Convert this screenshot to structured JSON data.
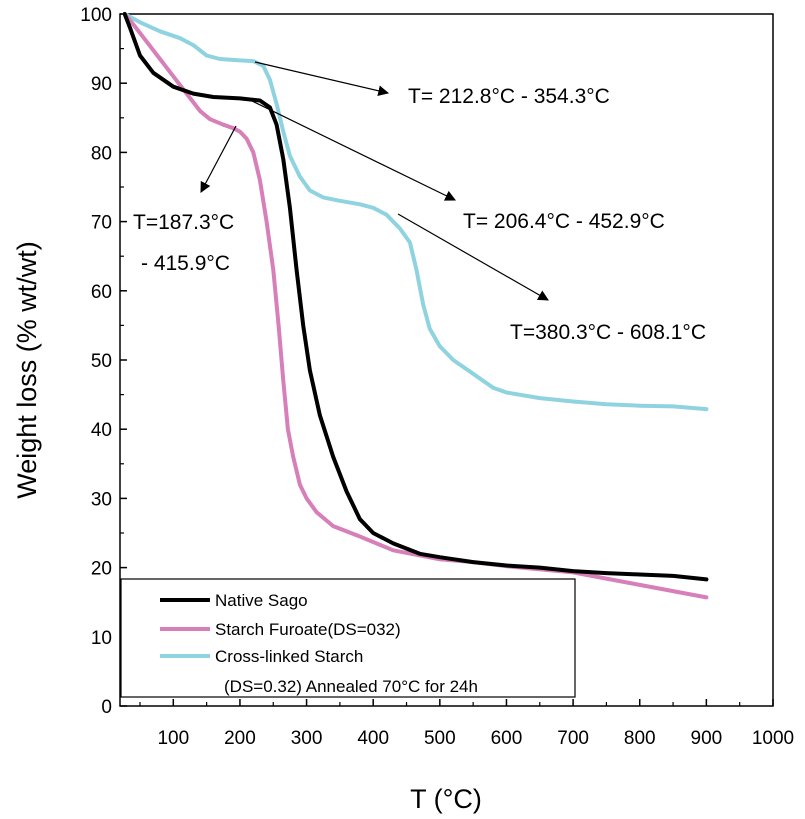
{
  "chart_data": {
    "type": "line",
    "title": "",
    "xlabel": "T (°C)",
    "ylabel": "Weight loss (% wt/wt)",
    "xlim": [
      20,
      1000
    ],
    "ylim": [
      0,
      100
    ],
    "xticks": [
      100,
      200,
      300,
      400,
      500,
      600,
      700,
      800,
      900,
      1000
    ],
    "yticks": [
      0,
      10,
      20,
      30,
      40,
      50,
      60,
      70,
      80,
      90,
      100
    ],
    "legend_position": "bottom-left",
    "colors": {
      "native": "#000000",
      "furoate": "#d67fb9",
      "crosslinked": "#8fd3e0",
      "axis": "#000000",
      "arrow": "#000000"
    },
    "series": [
      {
        "name": "Native Sago",
        "color": "#000000",
        "points": [
          [
            27,
            100
          ],
          [
            35,
            98
          ],
          [
            50,
            94
          ],
          [
            70,
            91.5
          ],
          [
            100,
            89.5
          ],
          [
            130,
            88.5
          ],
          [
            160,
            88
          ],
          [
            200,
            87.8
          ],
          [
            230,
            87.5
          ],
          [
            245,
            86.5
          ],
          [
            255,
            84
          ],
          [
            265,
            79
          ],
          [
            275,
            72
          ],
          [
            285,
            63
          ],
          [
            295,
            55
          ],
          [
            305,
            48.5
          ],
          [
            320,
            42
          ],
          [
            340,
            36
          ],
          [
            360,
            31
          ],
          [
            380,
            27
          ],
          [
            400,
            25
          ],
          [
            430,
            23.5
          ],
          [
            470,
            22
          ],
          [
            500,
            21.5
          ],
          [
            550,
            20.8
          ],
          [
            600,
            20.3
          ],
          [
            650,
            20
          ],
          [
            700,
            19.5
          ],
          [
            750,
            19.2
          ],
          [
            800,
            19
          ],
          [
            850,
            18.8
          ],
          [
            900,
            18.3
          ]
        ]
      },
      {
        "name": "Starch Furoate(DS=032)",
        "color": "#d67fb9",
        "points": [
          [
            27,
            100
          ],
          [
            40,
            98.5
          ],
          [
            60,
            96
          ],
          [
            80,
            93.5
          ],
          [
            100,
            91
          ],
          [
            120,
            88.5
          ],
          [
            140,
            86
          ],
          [
            155,
            84.8
          ],
          [
            175,
            84
          ],
          [
            190,
            83.5
          ],
          [
            200,
            83
          ],
          [
            210,
            82
          ],
          [
            220,
            80
          ],
          [
            230,
            76
          ],
          [
            240,
            70
          ],
          [
            250,
            63
          ],
          [
            258,
            55
          ],
          [
            265,
            47
          ],
          [
            272,
            40
          ],
          [
            280,
            36
          ],
          [
            290,
            32
          ],
          [
            300,
            30
          ],
          [
            315,
            28
          ],
          [
            340,
            26
          ],
          [
            380,
            24.5
          ],
          [
            430,
            22.5
          ],
          [
            500,
            21.2
          ],
          [
            550,
            20.8
          ],
          [
            600,
            20.2
          ],
          [
            700,
            19.3
          ],
          [
            800,
            17.5
          ],
          [
            900,
            15.7
          ]
        ]
      },
      {
        "name": "Cross-linked Starch (DS=0.32) Annealed 70°C for 24h",
        "color": "#8fd3e0",
        "points": [
          [
            27,
            100
          ],
          [
            50,
            98.8
          ],
          [
            80,
            97.5
          ],
          [
            110,
            96.5
          ],
          [
            130,
            95.5
          ],
          [
            150,
            94
          ],
          [
            170,
            93.5
          ],
          [
            200,
            93.3
          ],
          [
            220,
            93.2
          ],
          [
            235,
            92.5
          ],
          [
            245,
            90.5
          ],
          [
            255,
            87
          ],
          [
            265,
            83
          ],
          [
            275,
            79.5
          ],
          [
            290,
            76.5
          ],
          [
            305,
            74.5
          ],
          [
            325,
            73.5
          ],
          [
            350,
            73
          ],
          [
            380,
            72.5
          ],
          [
            400,
            72
          ],
          [
            420,
            71
          ],
          [
            440,
            69
          ],
          [
            455,
            67
          ],
          [
            465,
            63
          ],
          [
            475,
            58
          ],
          [
            485,
            54.5
          ],
          [
            500,
            52
          ],
          [
            520,
            50
          ],
          [
            550,
            48
          ],
          [
            580,
            46
          ],
          [
            600,
            45.3
          ],
          [
            650,
            44.5
          ],
          [
            700,
            44
          ],
          [
            750,
            43.6
          ],
          [
            800,
            43.4
          ],
          [
            850,
            43.3
          ],
          [
            900,
            42.9
          ]
        ]
      }
    ],
    "annotations": [
      {
        "text": "T= 212.8°C - 354.3°C"
      },
      {
        "text": "T= 206.4°C - 452.9°C"
      },
      {
        "text": "T=380.3°C - 608.1°C"
      },
      {
        "text": "T=187.3°C"
      },
      {
        "text": "- 415.9°C"
      }
    ],
    "legend": {
      "entries": [
        {
          "label": "Native Sago",
          "color": "#000000"
        },
        {
          "label": "Starch Furoate(DS=032)",
          "color": "#d67fb9"
        },
        {
          "label": "Cross-linked Starch",
          "color": "#8fd3e0"
        }
      ],
      "extra_line": "(DS=0.32) Annealed 70°C for 24h"
    }
  }
}
